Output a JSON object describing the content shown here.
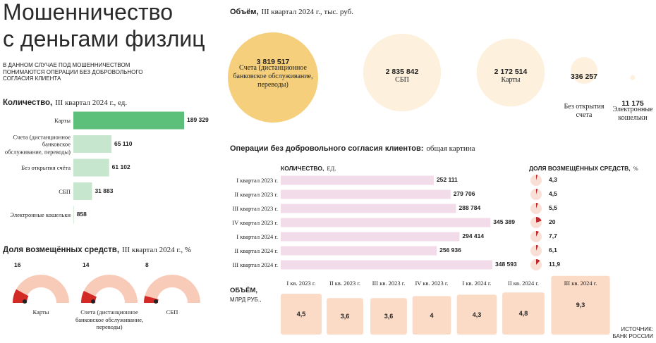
{
  "header": {
    "title": [
      "Мошенничество",
      "с деньгами физлиц"
    ],
    "subtitle": "В ДАННОМ СЛУЧАЕ ПОД МОШЕННИЧЕСТВОМ ПОНИМАЮТСЯ ОПЕРАЦИИ БЕЗ ДОБРОВОЛЬНОГО СОГЛАСИЯ КЛИЕНТА"
  },
  "source": "ИСТОЧНИК: БАНК РОССИИ",
  "chart_data": [
    {
      "type": "bar",
      "orientation": "horizontal",
      "title": "Количество,",
      "subtitle": "III квартал 2024 г., ед.",
      "categories": [
        "Карты",
        "Счета (дистанционное банковское обслуживание, переводы)",
        "Без открытия счёта",
        "СБП",
        "Электронные кошельки"
      ],
      "values": [
        189329,
        65110,
        61102,
        31883,
        858
      ],
      "value_labels": [
        "189 329",
        "65 110",
        "61 102",
        "31 883",
        "858"
      ],
      "colors": [
        "#5cbf7a",
        "#c6e6cd",
        "#c6e6cd",
        "#c6e6cd",
        "#c6e6cd"
      ]
    },
    {
      "type": "gauge",
      "title": "Доля возмещённых средств,",
      "subtitle": "III квартал 2024 г., %",
      "categories": [
        "Карты",
        "Счета (дистанционное банковское обслуживание, переводы)",
        "СБП"
      ],
      "values": [
        16,
        14,
        8
      ],
      "color": "#d42a26",
      "base_color": "#f8cbb8"
    },
    {
      "type": "bubble",
      "title": "Объём,",
      "subtitle": "III квартал 2024 г., тыс. руб.",
      "categories": [
        "Счета (дистанционное банковское обслуживание, переводы)",
        "СБП",
        "Карты",
        "Без открытия счета",
        "Электронные кошельки"
      ],
      "values": [
        3819517,
        2835842,
        2172514,
        336257,
        11175
      ],
      "value_labels": [
        "3 819 517",
        "2 835 842",
        "2 172 514",
        "336 257",
        "11 175"
      ],
      "colors": [
        "#f5cf7c",
        "#fdf0dc",
        "#fdf0dc",
        "#fdf0dc",
        "#fdf0dc"
      ]
    },
    {
      "type": "bar",
      "orientation": "horizontal",
      "title": "Операции без добровольного согласия клиентов:",
      "subtitle": "общая картина",
      "value_title": "КОЛИЧЕСТВО,",
      "value_unit": "ЕД.",
      "categories": [
        "I квартал 2023 г.",
        "II квартал 2023 г.",
        "III квартал 2023 г.",
        "IV квартал 2023 г.",
        "I квартал 2024 г.",
        "II квартал 2024 г.",
        "III квартал 2024 г."
      ],
      "values": [
        252111,
        279706,
        288784,
        345389,
        294414,
        256936,
        348593
      ],
      "value_labels": [
        "252 111",
        "279 706",
        "288 784",
        "345 389",
        "294 414",
        "256 936",
        "348 593"
      ],
      "color": "#f2dcea"
    },
    {
      "type": "pie",
      "title": "ДОЛЯ ВОЗМЕЩЁННЫХ СРЕДСТВ,",
      "subtitle": "%",
      "values": [
        4.3,
        4.5,
        5.5,
        20,
        7.7,
        6.1,
        11.9
      ],
      "value_labels": [
        "4,3",
        "4,5",
        "5,5",
        "20",
        "7,7",
        "6,1",
        "11,9"
      ],
      "color": "#c0282d",
      "base_color": "#f9e0d6"
    },
    {
      "type": "square",
      "title": "ОБЪЁМ,",
      "subtitle": "МЛРД РУБ.,",
      "categories": [
        "I кв. 2023 г.",
        "II кв. 2023 г.",
        "III кв. 2023 г.",
        "IV кв. 2023 г.",
        "I кв. 2024 г.",
        "II кв. 2024 г.",
        "III кв. 2024 г."
      ],
      "values": [
        4.5,
        3.6,
        3.6,
        4,
        4.3,
        4.8,
        9.3
      ],
      "value_labels": [
        "4,5",
        "3,6",
        "3,6",
        "4",
        "4,3",
        "4,8",
        "9,3"
      ],
      "color": "#fbdac6"
    }
  ]
}
